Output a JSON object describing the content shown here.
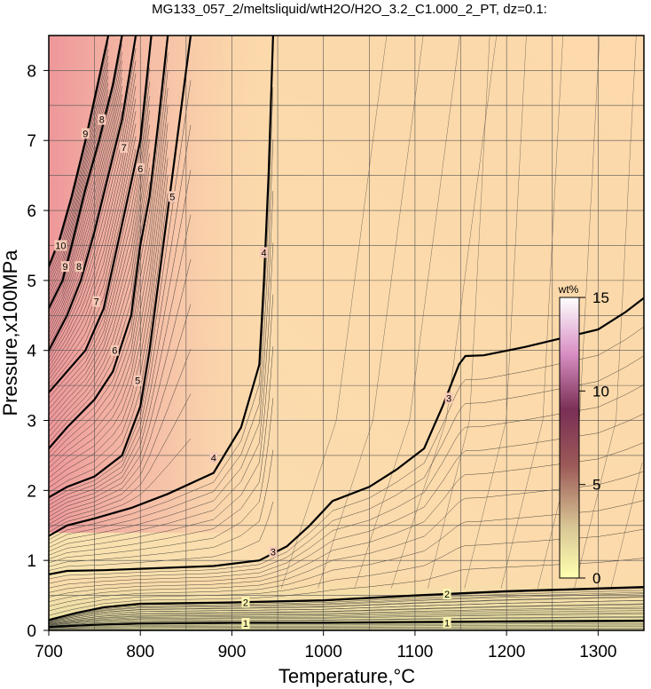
{
  "chart_data": {
    "type": "heatmap",
    "title": "MG133_057_2/meltsliquid/wtH2O/H2O_3.2_C1.000_2_PT, dz=0.1:",
    "xlabel": "Temperature,°C",
    "ylabel": "Pressure,x100MPa",
    "xlim": [
      700,
      1350
    ],
    "ylim": [
      0,
      8.5
    ],
    "xticks": [
      "700",
      "800",
      "900",
      "1000",
      "1100",
      "1200",
      "1300"
    ],
    "yticks": [
      "0",
      "1",
      "2",
      "3",
      "4",
      "5",
      "6",
      "7",
      "8"
    ],
    "grid": true,
    "colorbar": {
      "unit": "wt%",
      "range": [
        0,
        15
      ],
      "ticks": [
        "0",
        "5",
        "10",
        "15"
      ],
      "colors": [
        "#ffffb0",
        "#d9b98a",
        "#8a4a4a",
        "#b8658f",
        "#f0c8e8",
        "#ffffff"
      ]
    },
    "background_colors": {
      "low": "#f0e4a8",
      "mid": "#fbd9a8",
      "high": "#f5aaa0"
    },
    "contour_levels_labeled": [
      "1",
      "2",
      "3",
      "4",
      "5",
      "6",
      "7",
      "8",
      "9",
      "10"
    ],
    "contours": [
      {
        "level": 1,
        "points": [
          [
            700,
            0.05
          ],
          [
            750,
            0.08
          ],
          [
            800,
            0.1
          ],
          [
            900,
            0.11
          ],
          [
            1000,
            0.11
          ],
          [
            1100,
            0.12
          ],
          [
            1200,
            0.13
          ],
          [
            1350,
            0.14
          ]
        ]
      },
      {
        "level": 2,
        "points": [
          [
            700,
            0.15
          ],
          [
            730,
            0.25
          ],
          [
            760,
            0.33
          ],
          [
            800,
            0.38
          ],
          [
            900,
            0.4
          ],
          [
            1000,
            0.43
          ],
          [
            1100,
            0.5
          ],
          [
            1200,
            0.56
          ],
          [
            1350,
            0.62
          ]
        ]
      },
      {
        "level": 3,
        "points": [
          [
            700,
            0.8
          ],
          [
            720,
            0.85
          ],
          [
            760,
            0.86
          ],
          [
            800,
            0.88
          ],
          [
            880,
            0.92
          ],
          [
            930,
            1.0
          ],
          [
            960,
            1.2
          ],
          [
            985,
            1.5
          ],
          [
            1010,
            1.85
          ],
          [
            1050,
            2.05
          ],
          [
            1080,
            2.3
          ],
          [
            1110,
            2.6
          ],
          [
            1130,
            3.2
          ],
          [
            1148,
            3.8
          ],
          [
            1155,
            3.92
          ],
          [
            1175,
            3.93
          ],
          [
            1220,
            4.05
          ],
          [
            1300,
            4.3
          ],
          [
            1330,
            4.55
          ],
          [
            1350,
            4.75
          ]
        ]
      },
      {
        "level": 4,
        "points": [
          [
            700,
            1.35
          ],
          [
            720,
            1.5
          ],
          [
            750,
            1.6
          ],
          [
            790,
            1.75
          ],
          [
            830,
            1.95
          ],
          [
            880,
            2.25
          ],
          [
            910,
            2.9
          ],
          [
            930,
            3.8
          ],
          [
            935,
            5.0
          ],
          [
            940,
            6.5
          ],
          [
            945,
            8.5
          ]
        ]
      },
      {
        "level": 5,
        "points": [
          [
            700,
            1.9
          ],
          [
            720,
            2.05
          ],
          [
            750,
            2.2
          ],
          [
            780,
            2.5
          ],
          [
            800,
            3.2
          ],
          [
            810,
            4.0
          ],
          [
            820,
            5.0
          ],
          [
            830,
            6.0
          ],
          [
            845,
            7.5
          ],
          [
            855,
            8.5
          ]
        ]
      },
      {
        "level": 6,
        "points": [
          [
            700,
            2.6
          ],
          [
            720,
            2.9
          ],
          [
            750,
            3.3
          ],
          [
            770,
            3.7
          ],
          [
            790,
            4.5
          ],
          [
            800,
            5.5
          ],
          [
            810,
            6.2
          ],
          [
            820,
            7.3
          ],
          [
            830,
            8.5
          ]
        ]
      },
      {
        "level": 7,
        "points": [
          [
            700,
            3.4
          ],
          [
            720,
            3.7
          ],
          [
            740,
            4.0
          ],
          [
            760,
            4.6
          ],
          [
            775,
            5.5
          ],
          [
            790,
            6.4
          ],
          [
            800,
            7.0
          ],
          [
            812,
            8.5
          ]
        ]
      },
      {
        "level": 8,
        "points": [
          [
            700,
            4.0
          ],
          [
            720,
            4.5
          ],
          [
            735,
            5.0
          ],
          [
            750,
            5.7
          ],
          [
            765,
            6.5
          ],
          [
            780,
            7.3
          ],
          [
            795,
            8.5
          ]
        ]
      },
      {
        "level": 9,
        "points": [
          [
            700,
            4.6
          ],
          [
            715,
            5.0
          ],
          [
            725,
            5.5
          ],
          [
            740,
            6.3
          ],
          [
            755,
            7.0
          ],
          [
            770,
            7.8
          ],
          [
            780,
            8.5
          ]
        ]
      },
      {
        "level": 10,
        "points": [
          [
            700,
            5.2
          ],
          [
            712,
            5.6
          ],
          [
            725,
            6.2
          ],
          [
            740,
            7.0
          ],
          [
            755,
            7.9
          ],
          [
            765,
            8.5
          ]
        ]
      }
    ],
    "contour_label_positions": [
      {
        "text": "1",
        "x": 915,
        "y": 0.1
      },
      {
        "text": "1",
        "x": 1135,
        "y": 0.11
      },
      {
        "text": "2",
        "x": 915,
        "y": 0.4
      },
      {
        "text": "2",
        "x": 1135,
        "y": 0.52
      },
      {
        "text": "3",
        "x": 945,
        "y": 1.12
      },
      {
        "text": "3",
        "x": 1137,
        "y": 3.32
      },
      {
        "text": "4",
        "x": 880,
        "y": 2.47
      },
      {
        "text": "4",
        "x": 935,
        "y": 5.4
      },
      {
        "text": "5",
        "x": 797,
        "y": 3.57
      },
      {
        "text": "5",
        "x": 835,
        "y": 6.2
      },
      {
        "text": "6",
        "x": 772,
        "y": 4.0
      },
      {
        "text": "6",
        "x": 800,
        "y": 6.6
      },
      {
        "text": "7",
        "x": 752,
        "y": 4.7
      },
      {
        "text": "7",
        "x": 782,
        "y": 6.9
      },
      {
        "text": "8",
        "x": 733,
        "y": 5.2
      },
      {
        "text": "8",
        "x": 758,
        "y": 7.3
      },
      {
        "text": "9",
        "x": 718,
        "y": 5.2
      },
      {
        "text": "9",
        "x": 740,
        "y": 7.1
      },
      {
        "text": "10",
        "x": 713,
        "y": 5.5
      }
    ]
  }
}
